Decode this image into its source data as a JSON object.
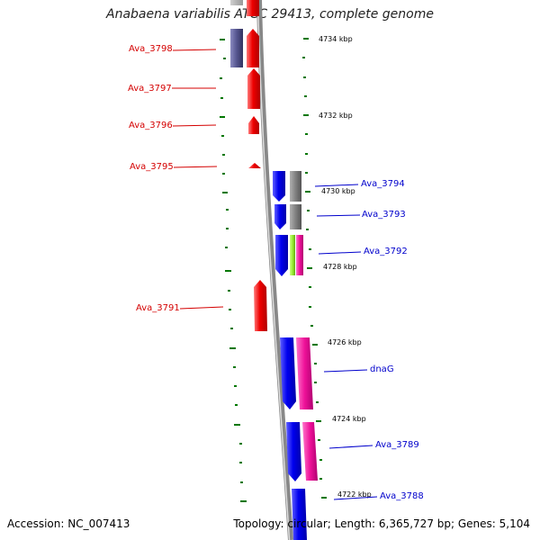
{
  "title": "Anabaena variabilis ATCC 29413, complete genome",
  "accession": "Accession: NC_007413",
  "summary": "Topology: circular; Length: 6,365,727 bp; Genes: 5,104",
  "colors": {
    "forward_gene": "#ee0000",
    "reverse_gene": "#0000ee",
    "backbone": "#888888",
    "tick": "#007700",
    "label_forward": "#d40000",
    "label_reverse": "#0000cc",
    "cog_gray": "#808080",
    "cog_pink": "#ee1199",
    "cog_green": "#99ee33",
    "cog_purple": "#55558f"
  },
  "scale_labels": [
    "4734 kbp",
    "4732 kbp",
    "4730 kbp",
    "4728 kbp",
    "4726 kbp",
    "4724 kbp",
    "4722 kbp"
  ],
  "forward_genes": [
    "Ava_3798",
    "Ava_3797",
    "Ava_3796",
    "Ava_3795",
    "Ava_3791"
  ],
  "reverse_genes": [
    "Ava_3794",
    "Ava_3793",
    "Ava_3792",
    "dnaG",
    "Ava_3789",
    "Ava_3788"
  ]
}
